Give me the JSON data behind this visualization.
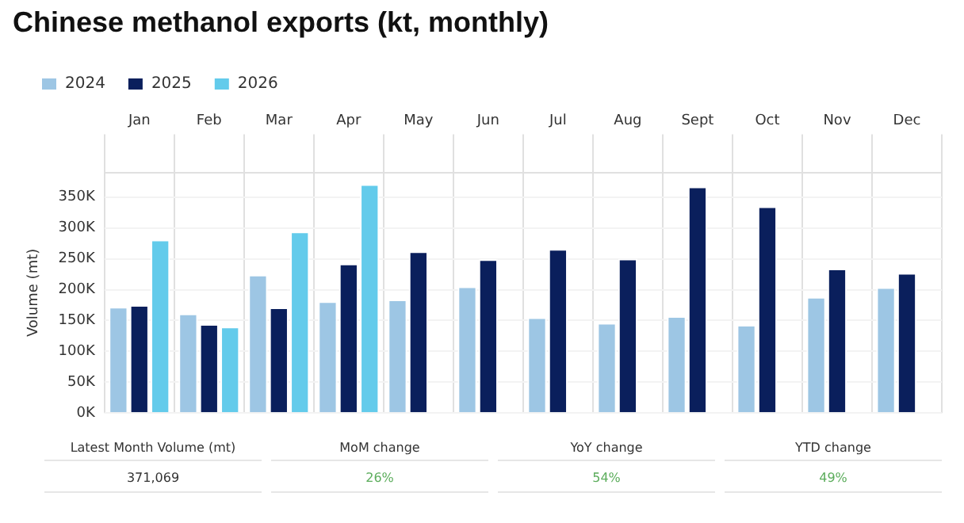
{
  "chart_data": {
    "type": "bar",
    "title": "Chinese methanol exports (kt, monthly)",
    "ylabel": "Volume (mt)",
    "categories": [
      "Jan",
      "Feb",
      "Mar",
      "Apr",
      "May",
      "Jun",
      "Jul",
      "Aug",
      "Sept",
      "Oct",
      "Nov",
      "Dec"
    ],
    "series": [
      {
        "name": "2024",
        "color": "#9dc6e4",
        "values": [
          172,
          161,
          224,
          181,
          184,
          205,
          155,
          146,
          157,
          143,
          188,
          204
        ]
      },
      {
        "name": "2025",
        "color": "#0a1f5c",
        "values": [
          175,
          144,
          171,
          242,
          262,
          249,
          266,
          250,
          367,
          335,
          234,
          227
        ]
      },
      {
        "name": "2026",
        "color": "#63cbeb",
        "values": [
          281,
          140,
          294,
          371,
          null,
          null,
          null,
          null,
          null,
          null,
          null,
          null
        ]
      }
    ],
    "ylim": [
      0,
      390
    ],
    "yticks": [
      {
        "value": 0,
        "label": "0K"
      },
      {
        "value": 50,
        "label": "50K"
      },
      {
        "value": 100,
        "label": "100K"
      },
      {
        "value": 150,
        "label": "150K"
      },
      {
        "value": 200,
        "label": "200K"
      },
      {
        "value": 250,
        "label": "250K"
      },
      {
        "value": 300,
        "label": "300K"
      },
      {
        "value": 350,
        "label": "350K"
      }
    ],
    "grid": true,
    "legend": "top left",
    "annotations": [
      "Latest Month Volume (mt)",
      "MoM change",
      "YoY change",
      "YTD change",
      "371,069",
      "26%",
      "54%",
      "49%"
    ]
  }
}
